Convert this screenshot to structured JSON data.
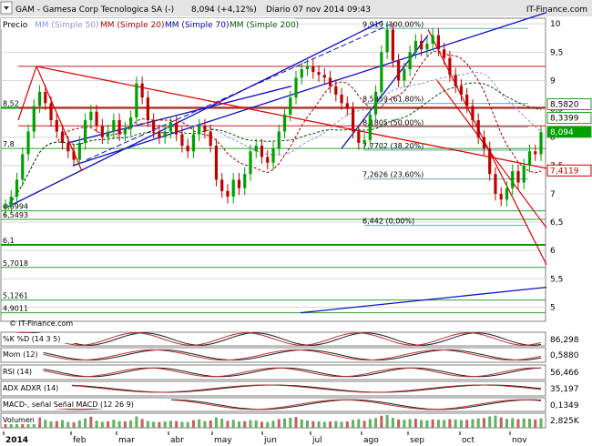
{
  "header": {
    "ticker_label": "GAM - Gamesa Corp Tecnologica SA (-)",
    "last_value": "8,094 (+4,12%)",
    "period": "Diario 07 nov 2014 09:43",
    "brand": "IT-Finance.com"
  },
  "watermark": "© IT-Finance.com",
  "legend": {
    "precio": "Precio",
    "ma50": "MM (Simple 50)",
    "ma20": "MM (Simple 20)",
    "ma70": "MM (Simple 70)",
    "ma200": "MM (Simple 200)"
  },
  "colors": {
    "up": "#00a000",
    "down": "#c00000",
    "ma20": "#a00000",
    "ma50": "#9090e0",
    "ma70": "#0000b0",
    "ma200": "#005000",
    "trend_blue": "#1010c8",
    "trend_red": "#e00000",
    "fib": "#60b0b0"
  },
  "chart_data": {
    "type": "candlestick",
    "title": "GAM - Gamesa Corp Tecnologica SA (-)",
    "ylim": [
      4.75,
      10.1
    ],
    "y_ticks": [
      "10",
      "9,5",
      "9",
      "8,5",
      "8",
      "7,5",
      "7",
      "6,5",
      "6",
      "5,5",
      "5"
    ],
    "x_ticks": [
      "2014",
      "feb",
      "mar",
      "abr",
      "may",
      "jun",
      "jul",
      "ago",
      "sep",
      "oct",
      "nov"
    ],
    "level_labels": [
      "8,52",
      "7,8",
      "6,6994",
      "6,5493",
      "6,1",
      "5,7018",
      "5,1261",
      "4,9011"
    ],
    "fib_levels": [
      {
        "label": "9,919 (100,00%)",
        "value": 9.919
      },
      {
        "label": "8,5959 (61,80%)",
        "value": 8.5959
      },
      {
        "label": "8,1805 (50,00%)",
        "value": 8.1805
      },
      {
        "label": "7,7702 (38,20%)",
        "value": 7.7702
      },
      {
        "label": "7,2626 (23,60%)",
        "value": 7.2626
      },
      {
        "label": "6,442 (0,00%)",
        "value": 6.442
      }
    ],
    "right_badges": [
      {
        "label": "8,5820",
        "value": 8.582
      },
      {
        "label": "8,3399",
        "value": 8.3399
      },
      {
        "label": "8,094",
        "value": 8.094
      },
      {
        "label": "7,4119",
        "value": 7.4119
      }
    ],
    "close": [
      6.78,
      6.95,
      7.25,
      7.7,
      8.1,
      8.55,
      8.8,
      8.6,
      8.3,
      8.1,
      7.9,
      7.75,
      7.6,
      7.9,
      8.3,
      8.45,
      8.2,
      8.0,
      8.1,
      8.3,
      8.05,
      8.15,
      8.35,
      8.95,
      8.7,
      8.3,
      8.1,
      8.0,
      8.1,
      8.25,
      8.05,
      7.85,
      7.75,
      8.05,
      8.2,
      8.1,
      7.85,
      7.25,
      7.05,
      6.95,
      7.25,
      7.1,
      7.35,
      7.75,
      7.85,
      7.65,
      7.55,
      7.8,
      8.1,
      8.4,
      8.7,
      9.05,
      9.2,
      9.25,
      9.15,
      9.1,
      9.05,
      8.9,
      8.75,
      8.6,
      8.5,
      8.1,
      7.9,
      7.95,
      8.4,
      8.8,
      9.5,
      9.9,
      9.35,
      9.0,
      9.2,
      9.5,
      9.7,
      9.55,
      9.65,
      9.8,
      9.55,
      9.4,
      9.1,
      8.9,
      8.75,
      8.55,
      8.3,
      8.0,
      7.8,
      7.35,
      7.0,
      6.9,
      7.1,
      7.4,
      7.2,
      7.5,
      7.75,
      7.7,
      8.09
    ],
    "volume": [
      2.1,
      2.5,
      3.0,
      2.2,
      1.8,
      2.6,
      3.1,
      2.4,
      1.9,
      2.0,
      2.3,
      1.7,
      1.6,
      2.2,
      2.8,
      3.3,
      2.1,
      1.8,
      1.9,
      2.4,
      2.0,
      1.9,
      2.2,
      3.4,
      2.6,
      2.0,
      1.8,
      1.7,
      1.9,
      2.1,
      2.0,
      1.8,
      1.7,
      2.3,
      2.5,
      2.0,
      2.2,
      3.1,
      2.7,
      2.1,
      2.4,
      1.9,
      2.0,
      2.3,
      2.2,
      1.8,
      1.7,
      2.1,
      2.6,
      2.8,
      3.0,
      3.2,
      2.5,
      2.2,
      2.0,
      1.9,
      1.8,
      1.9,
      2.0,
      1.8,
      1.9,
      2.4,
      2.6,
      2.1,
      2.6,
      2.9,
      3.6,
      3.8,
      3.0,
      2.5,
      2.4,
      2.6,
      2.7,
      2.3,
      2.2,
      2.5,
      2.4,
      2.3,
      2.6,
      2.5,
      2.3,
      2.4,
      2.6,
      2.8,
      2.9,
      3.4,
      3.6,
      3.1,
      2.7,
      2.9,
      2.6,
      2.8,
      2.7,
      2.5,
      2.825
    ],
    "indicators": [
      {
        "label": "%K  %D (14 3 5)",
        "value": "86,298"
      },
      {
        "label": "Mom (12)",
        "value": "0,5880"
      },
      {
        "label": "RSI (14)",
        "value": "56,466"
      },
      {
        "label": "ADX  ADXR (14)",
        "value": "35,197"
      },
      {
        "label": "MACD-, señal  Señal  MACD (12 26 9)",
        "value": "0,1349"
      },
      {
        "label": "Volumen",
        "value": "2,825K"
      }
    ]
  }
}
